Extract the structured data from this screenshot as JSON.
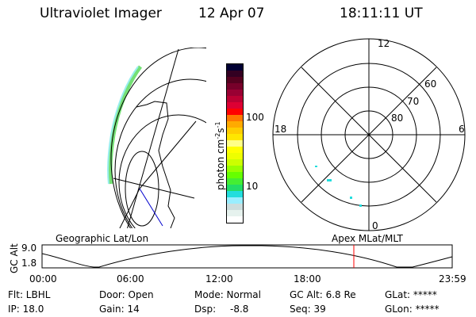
{
  "header": {
    "instrument": "Ultraviolet Imager",
    "date": "12 Apr 07",
    "time": "18:11:11 UT"
  },
  "colorbar": {
    "label": "photon cm",
    "label_exp1": "-2",
    "label_mid": "s",
    "label_exp2": "-1",
    "ticks": [
      "100",
      "10"
    ],
    "colors": [
      "#000033",
      "#330022",
      "#55001f",
      "#77002a",
      "#990033",
      "#bb0033",
      "#dd0033",
      "#ff0000",
      "#ff7700",
      "#ffaa00",
      "#ffcc00",
      "#ffe600",
      "#ffff88",
      "#ffff00",
      "#eeff00",
      "#ccff00",
      "#99ff00",
      "#66ff00",
      "#44ee33",
      "#22dd66",
      "#22dddd",
      "#99eeff",
      "#ccdddd",
      "#e6f2ee",
      "#ffffff"
    ]
  },
  "polar": {
    "mlt_labels": {
      "top": "12",
      "left": "18",
      "right": "6",
      "bottom": "0"
    },
    "lat_labels": [
      "60",
      "70",
      "80"
    ]
  },
  "timeline": {
    "left_label": "Geographic Lat/Lon",
    "right_label": "Apex MLat/MLT",
    "y_axis_label": "GC Alt",
    "y_ticks": [
      "9.0",
      "1.8"
    ],
    "x_ticks": [
      "00:00",
      "06:00",
      "12:00",
      "18:00",
      "23:59"
    ],
    "current_marker_time": "18:11",
    "marker_color": "#ff0000"
  },
  "status": {
    "flt": "Flt: LBHL",
    "ip": "IP: 18.0",
    "door": "Door: Open",
    "gain": "Gain: 14",
    "mode": "Mode: Normal",
    "dsp_label": "Dsp:",
    "dsp_value": "-8.8",
    "gc_alt": "GC Alt: 6.8 Re",
    "seq": "Seq: 39",
    "glat": "GLat: *****",
    "glon": "GLon: *****"
  }
}
